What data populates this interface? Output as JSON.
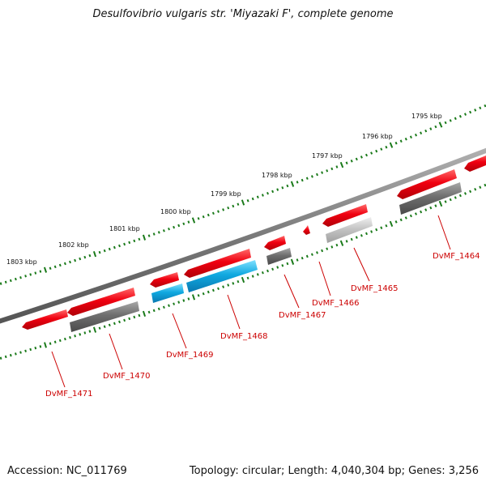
{
  "title": "Desulfovibrio vulgaris str. 'Miyazaki F', complete genome",
  "footer": {
    "accession": "Accession: NC_011769",
    "summary": "Topology: circular; Length: 4,040,304 bp; Genes: 3,256"
  },
  "ticks": [
    {
      "label": "1803 kbp"
    },
    {
      "label": "1802 kbp"
    },
    {
      "label": "1801 kbp"
    },
    {
      "label": "1800 kbp"
    },
    {
      "label": "1799 kbp"
    },
    {
      "label": "1798 kbp"
    },
    {
      "label": "1797 kbp"
    },
    {
      "label": "1796 kbp"
    },
    {
      "label": "1795 kbp"
    }
  ],
  "genes": [
    {
      "label": "DvMF_1464"
    },
    {
      "label": "DvMF_1465"
    },
    {
      "label": "DvMF_1466"
    },
    {
      "label": "DvMF_1467"
    },
    {
      "label": "DvMF_1468"
    },
    {
      "label": "DvMF_1469"
    },
    {
      "label": "DvMF_1470"
    },
    {
      "label": "DvMF_1471"
    }
  ],
  "colors": {
    "backbone": "#808080",
    "cds": "#e8000b",
    "gene_gray": "#707070",
    "gene_light": "#c8c8c8",
    "gene_cyan": "#10a8e0",
    "ticks": "#1a7a1a",
    "labels": "#cc0000"
  }
}
